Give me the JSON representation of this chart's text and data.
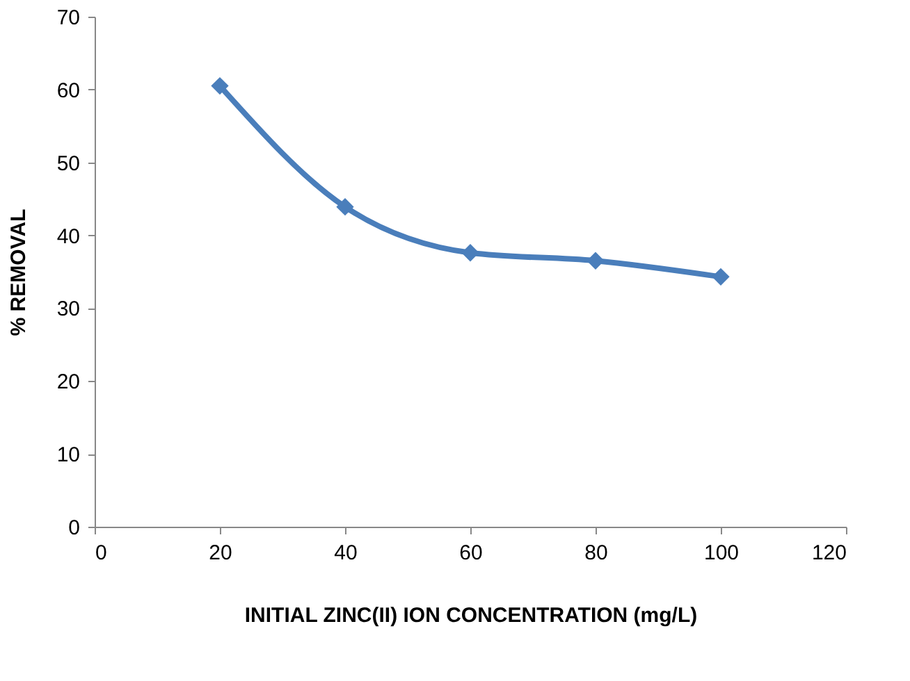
{
  "chart_data": {
    "type": "line",
    "xlabel": "INITIAL ZINC(II) ION CONCENTRATION (mg/L)",
    "ylabel": "% REMOVAL",
    "x": [
      20,
      40,
      60,
      80,
      100
    ],
    "series": [
      {
        "color": "#4a7ebb",
        "values": [
          60.5,
          43.9,
          37.6,
          36.5,
          34.3
        ]
      }
    ],
    "xlim": [
      0,
      120
    ],
    "xticks": [
      0,
      20,
      40,
      60,
      80,
      100,
      120
    ],
    "ylim": [
      0,
      70
    ],
    "yticks": [
      0,
      10,
      20,
      30,
      40,
      50,
      60,
      70
    ],
    "grid": false,
    "marker": "diamond",
    "line_style": "solid"
  }
}
